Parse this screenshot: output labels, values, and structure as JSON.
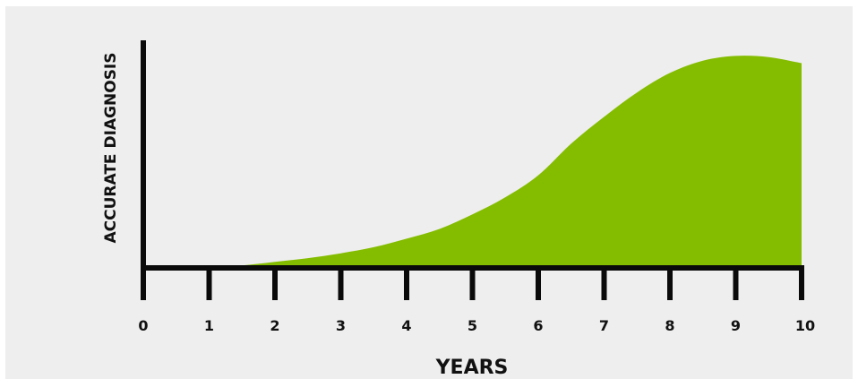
{
  "chart_data": {
    "type": "area",
    "title": "",
    "xlabel": "YEARS",
    "ylabel": "ACCURATE DIAGNOSIS",
    "xlim": [
      0,
      10
    ],
    "ylim": [
      0,
      100
    ],
    "x_ticks": [
      "0",
      "1",
      "2",
      "3",
      "4",
      "5",
      "6",
      "7",
      "8",
      "9",
      "10"
    ],
    "y_ticks": [],
    "grid": false,
    "legend": "none",
    "series": [
      {
        "x": [
          1,
          1.5,
          2,
          2.5,
          3,
          3.5,
          4,
          4.5,
          5,
          5.5,
          6,
          6.5,
          7,
          7.5,
          8,
          8.5,
          9,
          9.5,
          10
        ],
        "values": [
          0,
          1,
          2.5,
          4,
          6,
          8.5,
          12,
          16,
          22,
          29,
          38,
          51,
          62,
          72,
          80,
          85,
          87,
          86.5,
          84
        ],
        "color": "#84bd00"
      }
    ]
  }
}
